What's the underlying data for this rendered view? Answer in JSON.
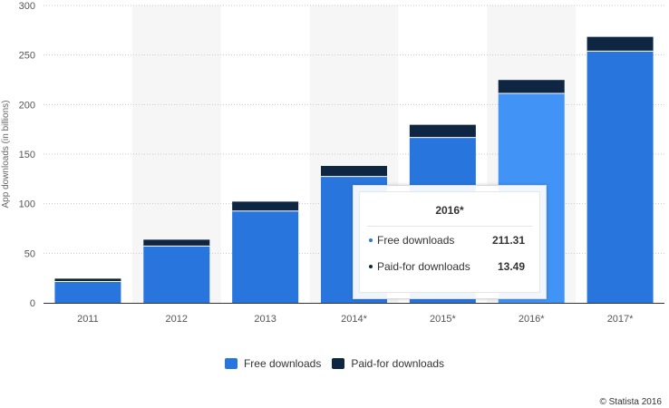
{
  "chart_data": {
    "type": "bar",
    "stacked": true,
    "categories": [
      "2011",
      "2012",
      "2013",
      "2014*",
      "2015*",
      "2016*",
      "2017*"
    ],
    "series": [
      {
        "name": "Free downloads",
        "values": [
          21.5,
          57.3,
          92.6,
          127.5,
          166.8,
          211.31,
          253.9
        ],
        "color": "#2876dd"
      },
      {
        "name": "Paid-for downloads",
        "values": [
          2.9,
          6.4,
          9.5,
          10.6,
          12.8,
          13.49,
          14.4
        ],
        "color": "#0f2643"
      }
    ],
    "highlight_color": "#4193f5",
    "highlight_index": 5,
    "ylabel": "App downloads (in billions)",
    "xlabel": "",
    "ylim": [
      0,
      300
    ],
    "yticks": [
      0,
      50,
      100,
      150,
      200,
      250,
      300
    ],
    "grid": true,
    "legend_position": "bottom"
  },
  "tooltip": {
    "title": "2016*",
    "rows": [
      {
        "label": "Free downloads",
        "value": "211.31",
        "color": "#2876dd"
      },
      {
        "label": "Paid-for downloads",
        "value": "13.49",
        "color": "#0f2643"
      }
    ]
  },
  "legend": {
    "items": [
      {
        "label": "Free downloads",
        "color": "#2876dd"
      },
      {
        "label": "Paid-for downloads",
        "color": "#0f2643"
      }
    ]
  },
  "credit": "© Statista 2016"
}
